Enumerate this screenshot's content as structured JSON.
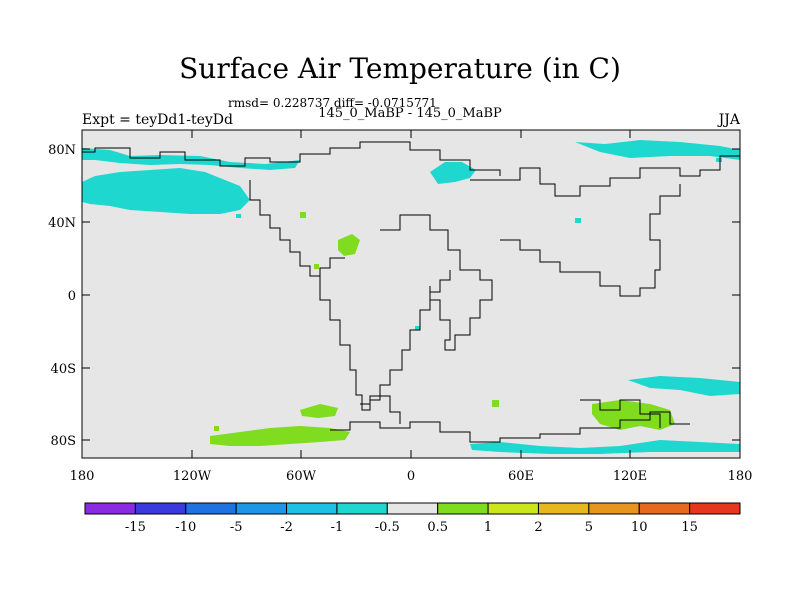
{
  "title": "Surface Air Temperature (in C)",
  "stats": "rmsd= 0.228737 diff= -0.0715771",
  "subtitle": "145_0_MaBP - 145_0_MaBP",
  "experiment": "Expt = teyDd1-teyDd",
  "season": "JJA",
  "x_ticks": [
    "180",
    "120W",
    "60W",
    "0",
    "60E",
    "120E",
    "180"
  ],
  "y_ticks": [
    "80N",
    "40N",
    "0",
    "40S",
    "80S"
  ],
  "colorbar": {
    "colors": [
      "#8a2be2",
      "#3a3adf",
      "#1f73e0",
      "#1e96e6",
      "#1ec0e6",
      "#1ed8d0",
      "#e6e6e6",
      "#7fdc1f",
      "#cce61e",
      "#e6b81e",
      "#e6961e",
      "#e66a1e",
      "#e6361e"
    ],
    "labels": [
      "-15",
      "-10",
      "-5",
      "-2",
      "-1",
      "-0.5",
      "0.5",
      "1",
      "2",
      "5",
      "10",
      "15"
    ]
  },
  "colors": {
    "background_field": "#e6e6e6",
    "cyan_anomaly": "#1ed8d0",
    "green_anomaly": "#7fdc1f",
    "coastline": "#000000"
  }
}
